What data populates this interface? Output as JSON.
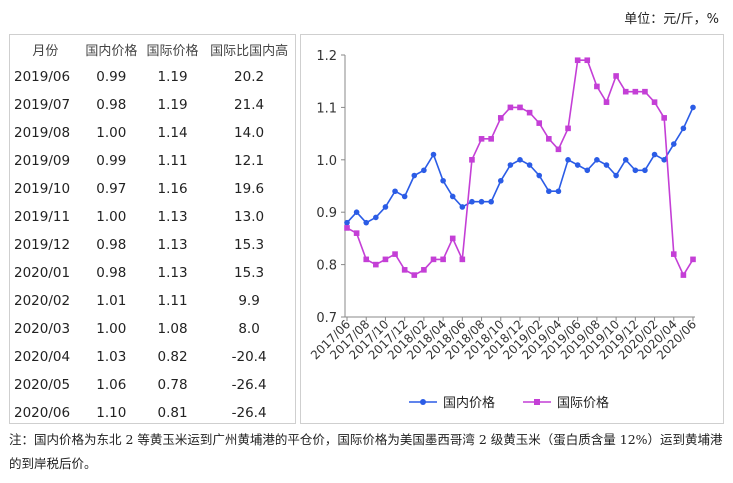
{
  "unit_label": "单位：元/斤，%",
  "table": {
    "headers": [
      "月份",
      "国内价格",
      "国际价格",
      "国际比国内高"
    ],
    "rows": [
      [
        "2019/06",
        "0.99",
        "1.19",
        "20.2"
      ],
      [
        "2019/07",
        "0.98",
        "1.19",
        "21.4"
      ],
      [
        "2019/08",
        "1.00",
        "1.14",
        "14.0"
      ],
      [
        "2019/09",
        "0.99",
        "1.11",
        "12.1"
      ],
      [
        "2019/10",
        "0.97",
        "1.16",
        "19.6"
      ],
      [
        "2019/11",
        "1.00",
        "1.13",
        "13.0"
      ],
      [
        "2019/12",
        "0.98",
        "1.13",
        "15.3"
      ],
      [
        "2020/01",
        "0.98",
        "1.13",
        "15.3"
      ],
      [
        "2020/02",
        "1.01",
        "1.11",
        "9.9"
      ],
      [
        "2020/03",
        "1.00",
        "1.08",
        "8.0"
      ],
      [
        "2020/04",
        "1.03",
        "0.82",
        "-20.4"
      ],
      [
        "2020/05",
        "1.06",
        "0.78",
        "-26.4"
      ],
      [
        "2020/06",
        "1.10",
        "0.81",
        "-26.4"
      ]
    ]
  },
  "chart_data": {
    "type": "line",
    "x": [
      "2017/06",
      "2017/07",
      "2017/08",
      "2017/09",
      "2017/10",
      "2017/11",
      "2017/12",
      "2018/01",
      "2018/02",
      "2018/03",
      "2018/04",
      "2018/05",
      "2018/06",
      "2018/07",
      "2018/08",
      "2018/09",
      "2018/10",
      "2018/11",
      "2018/12",
      "2019/01",
      "2019/02",
      "2019/03",
      "2019/04",
      "2019/05",
      "2019/06",
      "2019/07",
      "2019/08",
      "2019/09",
      "2019/10",
      "2019/11",
      "2019/12",
      "2020/01",
      "2020/02",
      "2020/03",
      "2020/04",
      "2020/05",
      "2020/06"
    ],
    "x_tick_labels": [
      "2017/06",
      "2017/08",
      "2017/10",
      "2017/12",
      "2018/02",
      "2018/04",
      "2018/06",
      "2018/08",
      "2018/10",
      "2018/12",
      "2019/02",
      "2019/04",
      "2019/06",
      "2019/08",
      "2019/10",
      "2019/12",
      "2020/02",
      "2020/04",
      "2020/06"
    ],
    "series": [
      {
        "name": "国内价格",
        "color": "#2b5ce6",
        "marker": "circle",
        "values": [
          0.88,
          0.9,
          0.88,
          0.89,
          0.91,
          0.94,
          0.93,
          0.97,
          0.98,
          1.01,
          0.96,
          0.93,
          0.91,
          0.92,
          0.92,
          0.92,
          0.96,
          0.99,
          1.0,
          0.99,
          0.97,
          0.94,
          0.94,
          1.0,
          0.99,
          0.98,
          1.0,
          0.99,
          0.97,
          1.0,
          0.98,
          0.98,
          1.01,
          1.0,
          1.03,
          1.06,
          1.1
        ]
      },
      {
        "name": "国际价格",
        "color": "#c43fd6",
        "marker": "square",
        "values": [
          0.87,
          0.86,
          0.81,
          0.8,
          0.81,
          0.82,
          0.79,
          0.78,
          0.79,
          0.81,
          0.81,
          0.85,
          0.81,
          1.0,
          1.04,
          1.04,
          1.08,
          1.1,
          1.1,
          1.09,
          1.07,
          1.04,
          1.02,
          1.06,
          1.19,
          1.19,
          1.14,
          1.11,
          1.16,
          1.13,
          1.13,
          1.13,
          1.11,
          1.08,
          0.82,
          0.78,
          0.81
        ]
      }
    ],
    "ylim": [
      0.7,
      1.2
    ],
    "yticks": [
      "0.7",
      "0.8",
      "0.9",
      "1.0",
      "1.1",
      "1.2"
    ],
    "legend_position": "bottom"
  },
  "note": "注：国内价格为东北 2 等黄玉米运到广州黄埔港的平仓价，国际价格为美国墨西哥湾 2 级黄玉米（蛋白质含量 12%）运到黄埔港的到岸税后价。"
}
